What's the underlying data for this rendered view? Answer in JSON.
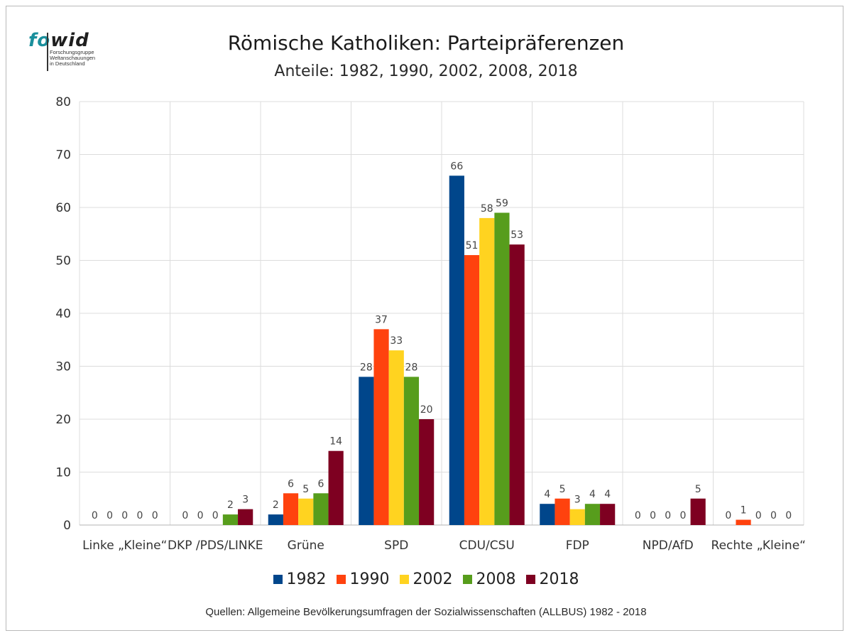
{
  "logo": {
    "word_fo": "fo",
    "word_wid": "wid",
    "lines": [
      "Forschungsgruppe",
      "Weltanschauungen",
      "in Deutschland"
    ]
  },
  "chart_data": {
    "type": "bar",
    "title": "Römische Katholiken: Parteipräferenzen",
    "subtitle": "Anteile: 1982, 1990, 2002, 2008, 2018",
    "categories": [
      "Linke „Kleine“",
      "DKP /PDS/LINKE",
      "Grüne",
      "SPD",
      "CDU/CSU",
      "FDP",
      "NPD/AfD",
      "Rechte „Kleine“"
    ],
    "series": [
      {
        "name": "1982",
        "color": "#00468b",
        "values": [
          0,
          0,
          2,
          28,
          66,
          4,
          0,
          0
        ]
      },
      {
        "name": "1990",
        "color": "#ff420e",
        "values": [
          0,
          0,
          6,
          37,
          51,
          5,
          0,
          1
        ]
      },
      {
        "name": "2002",
        "color": "#ffd320",
        "values": [
          0,
          0,
          5,
          33,
          58,
          3,
          0,
          0
        ]
      },
      {
        "name": "2008",
        "color": "#579d1c",
        "values": [
          0,
          2,
          6,
          28,
          59,
          4,
          0,
          0
        ]
      },
      {
        "name": "2018",
        "color": "#7e0021",
        "values": [
          0,
          3,
          14,
          20,
          53,
          4,
          5,
          0
        ]
      }
    ],
    "ylim": [
      0,
      80
    ],
    "yticks": [
      0,
      10,
      20,
      30,
      40,
      50,
      60,
      70,
      80
    ],
    "grid": true,
    "legend": "bottom",
    "xlabel": "",
    "ylabel": ""
  },
  "source": "Quellen: Allgemeine Bevölkerungsumfragen der Sozialwissenschaften (ALLBUS) 1982 - 2018"
}
